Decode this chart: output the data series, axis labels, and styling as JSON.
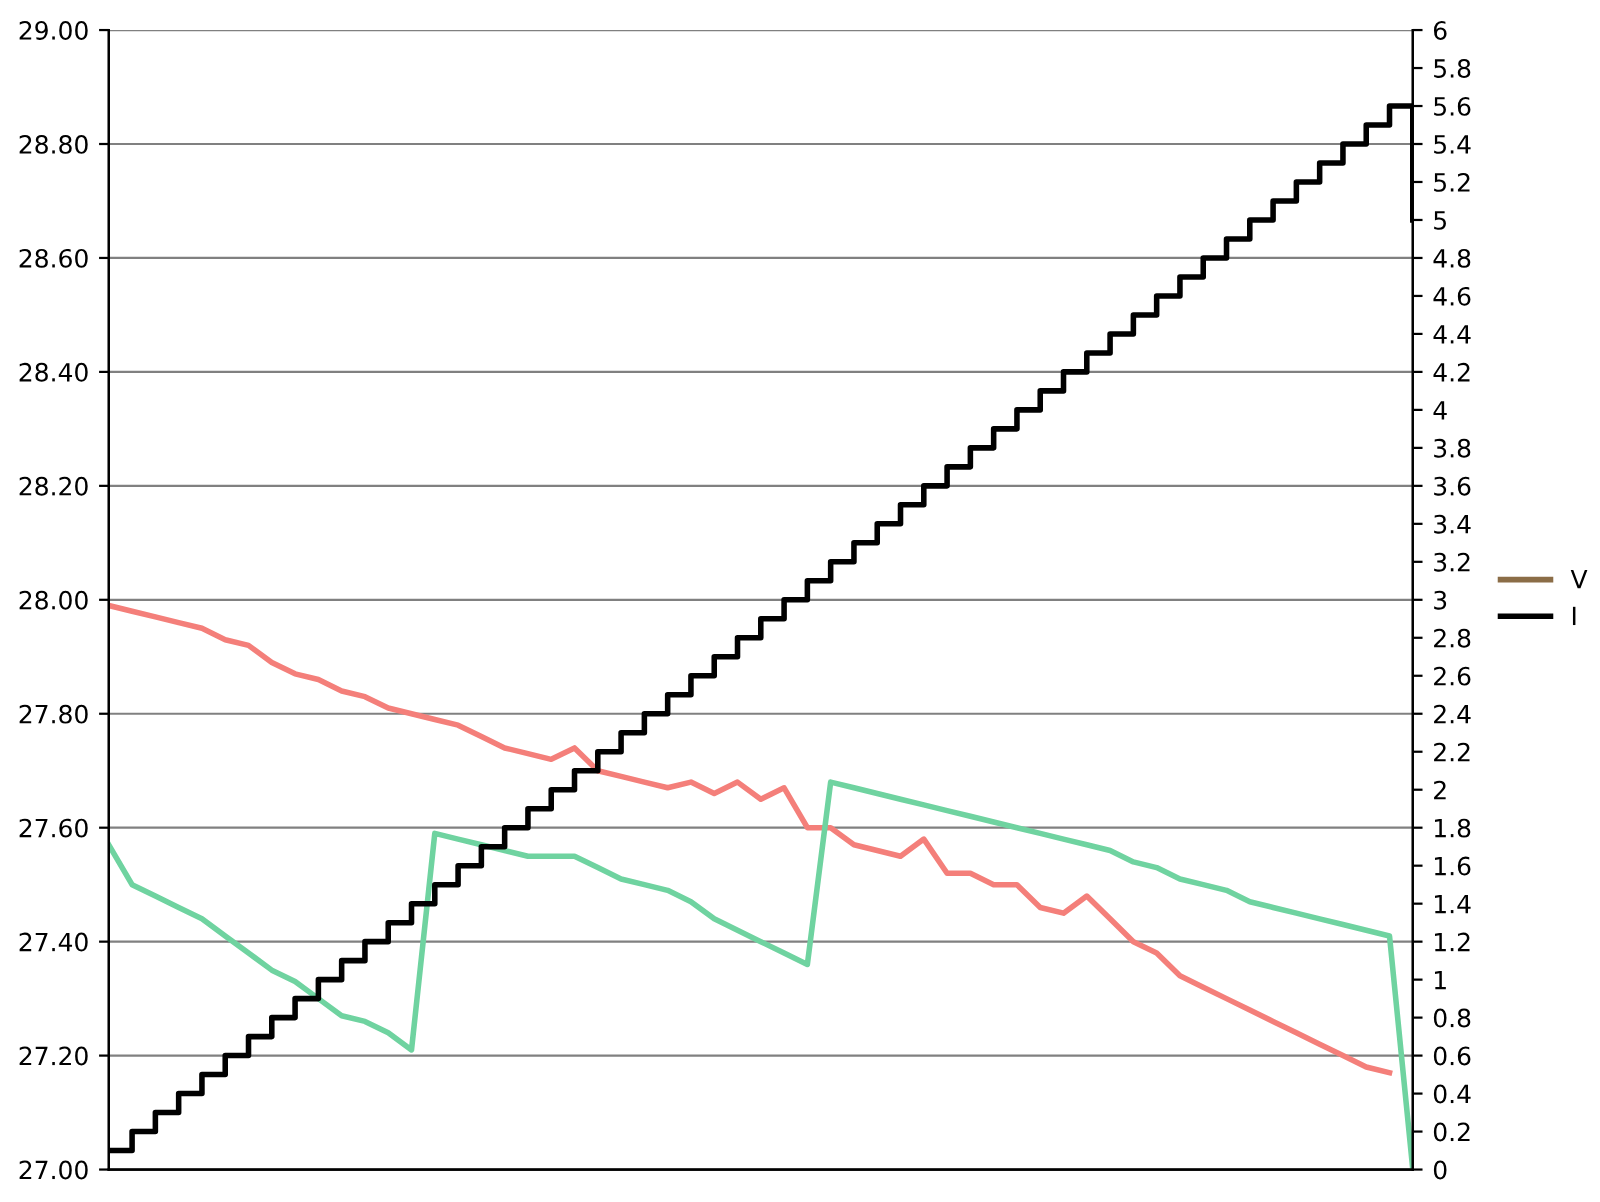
{
  "chart_data": {
    "type": "line",
    "categories": [
      null,
      null,
      null,
      null,
      null,
      null,
      null,
      null,
      null,
      null,
      null,
      null,
      null,
      null,
      null,
      null,
      null,
      null,
      null,
      null,
      null,
      null,
      null,
      null,
      null,
      null,
      null,
      null,
      null,
      null,
      null,
      null,
      null,
      null,
      null,
      null,
      null,
      null,
      null,
      null,
      null,
      null,
      null,
      null,
      null,
      null,
      null,
      null,
      null,
      null,
      null,
      null,
      null,
      null,
      null,
      null,
      null
    ],
    "ylim": [
      27,
      29
    ],
    "yticks": [
      {
        "value": 27,
        "label": "27.00"
      },
      {
        "value": 27.2,
        "label": "27.20"
      },
      {
        "value": 27.4,
        "label": "27.40"
      },
      {
        "value": 27.6,
        "label": "27.60"
      },
      {
        "value": 27.8,
        "label": "27.80"
      },
      {
        "value": 28,
        "label": "28.00"
      },
      {
        "value": 28.2,
        "label": "28.20"
      },
      {
        "value": 28.4,
        "label": "28.40"
      },
      {
        "value": 28.6,
        "label": "28.60"
      },
      {
        "value": 28.8,
        "label": "28.80"
      },
      {
        "value": 29,
        "label": "29.00"
      }
    ],
    "y2lim": [
      0,
      6
    ],
    "y2ticks": [
      0,
      0.2,
      0.4,
      0.6,
      0.8,
      1,
      1.2,
      1.4,
      1.6,
      1.8,
      2,
      2.2,
      2.4,
      2.6,
      2.8,
      3,
      3.2,
      3.4,
      3.6,
      3.8,
      4,
      4.2,
      4.4,
      4.6,
      4.8,
      5,
      5.2,
      5.4,
      5.6,
      5.8,
      6
    ],
    "grid": "y",
    "legend": "right",
    "series": [
      {
        "color": "#f47f7a",
        "values": [
          27.99,
          27.98,
          27.97,
          27.96,
          27.95,
          27.93,
          27.92,
          27.89,
          27.87,
          27.86,
          27.84,
          27.83,
          27.81,
          27.8,
          27.79,
          27.78,
          27.76,
          27.74,
          27.73,
          27.72,
          27.74,
          27.7,
          27.69,
          27.68,
          27.67,
          27.68,
          27.66,
          27.68,
          27.65,
          27.67,
          27.6,
          27.6,
          27.57,
          27.56,
          27.55,
          27.58,
          27.52,
          27.52,
          27.5,
          27.5,
          27.46,
          27.45,
          27.48,
          27.44,
          27.4,
          27.38,
          27.34,
          27.32,
          27.3,
          27.28,
          27.26,
          27.24,
          27.22,
          27.2,
          27.18,
          27.17,
          null
        ]
      },
      {
        "color": "#6fd3a0",
        "values": [
          27.57,
          27.5,
          27.48,
          27.46,
          27.44,
          27.41,
          27.38,
          27.35,
          27.33,
          27.3,
          27.27,
          27.26,
          27.24,
          27.21,
          27.59,
          27.58,
          27.57,
          27.56,
          27.55,
          27.55,
          27.55,
          27.53,
          27.51,
          27.5,
          27.49,
          27.47,
          27.44,
          27.42,
          27.4,
          27.38,
          27.36,
          27.68,
          27.67,
          27.66,
          27.65,
          27.64,
          27.63,
          27.62,
          27.61,
          27.6,
          27.59,
          27.58,
          27.57,
          27.56,
          27.54,
          27.53,
          27.51,
          27.5,
          27.49,
          27.47,
          27.46,
          27.45,
          27.44,
          27.43,
          27.42,
          27.41,
          27.0
        ]
      },
      {
        "name": "V",
        "color": "#8b6d47",
        "axis": "y2",
        "values": [
          null,
          null,
          null,
          null,
          null,
          null,
          null,
          null,
          null,
          null,
          null,
          null,
          null,
          null,
          null,
          null,
          null,
          null,
          null,
          null,
          null,
          null,
          null,
          null,
          null,
          null,
          null,
          null,
          null,
          null,
          null,
          null,
          null,
          null,
          null,
          null,
          null,
          null,
          null,
          null,
          null,
          null,
          null,
          null,
          null,
          null,
          null,
          null,
          null,
          null,
          null,
          null,
          null,
          null,
          null,
          null,
          null
        ]
      },
      {
        "name": "I",
        "color": "#000000",
        "type": "step",
        "axis": "y2",
        "values": [
          0.1,
          0.2,
          0.3,
          0.4,
          0.5,
          0.6,
          0.7,
          0.8,
          0.9,
          1.0,
          1.1,
          1.2,
          1.3,
          1.4,
          1.5,
          1.6,
          1.7,
          1.8,
          1.9,
          2.0,
          2.1,
          2.2,
          2.3,
          2.4,
          2.5,
          2.6,
          2.7,
          2.8,
          2.9,
          3.0,
          3.1,
          3.2,
          3.3,
          3.4,
          3.5,
          3.6,
          3.7,
          3.8,
          3.9,
          4.0,
          4.1,
          4.2,
          4.3,
          4.4,
          4.5,
          4.6,
          4.7,
          4.8,
          4.9,
          5.0,
          5.1,
          5.2,
          5.3,
          5.4,
          5.5,
          5.6,
          5.0
        ]
      }
    ]
  }
}
